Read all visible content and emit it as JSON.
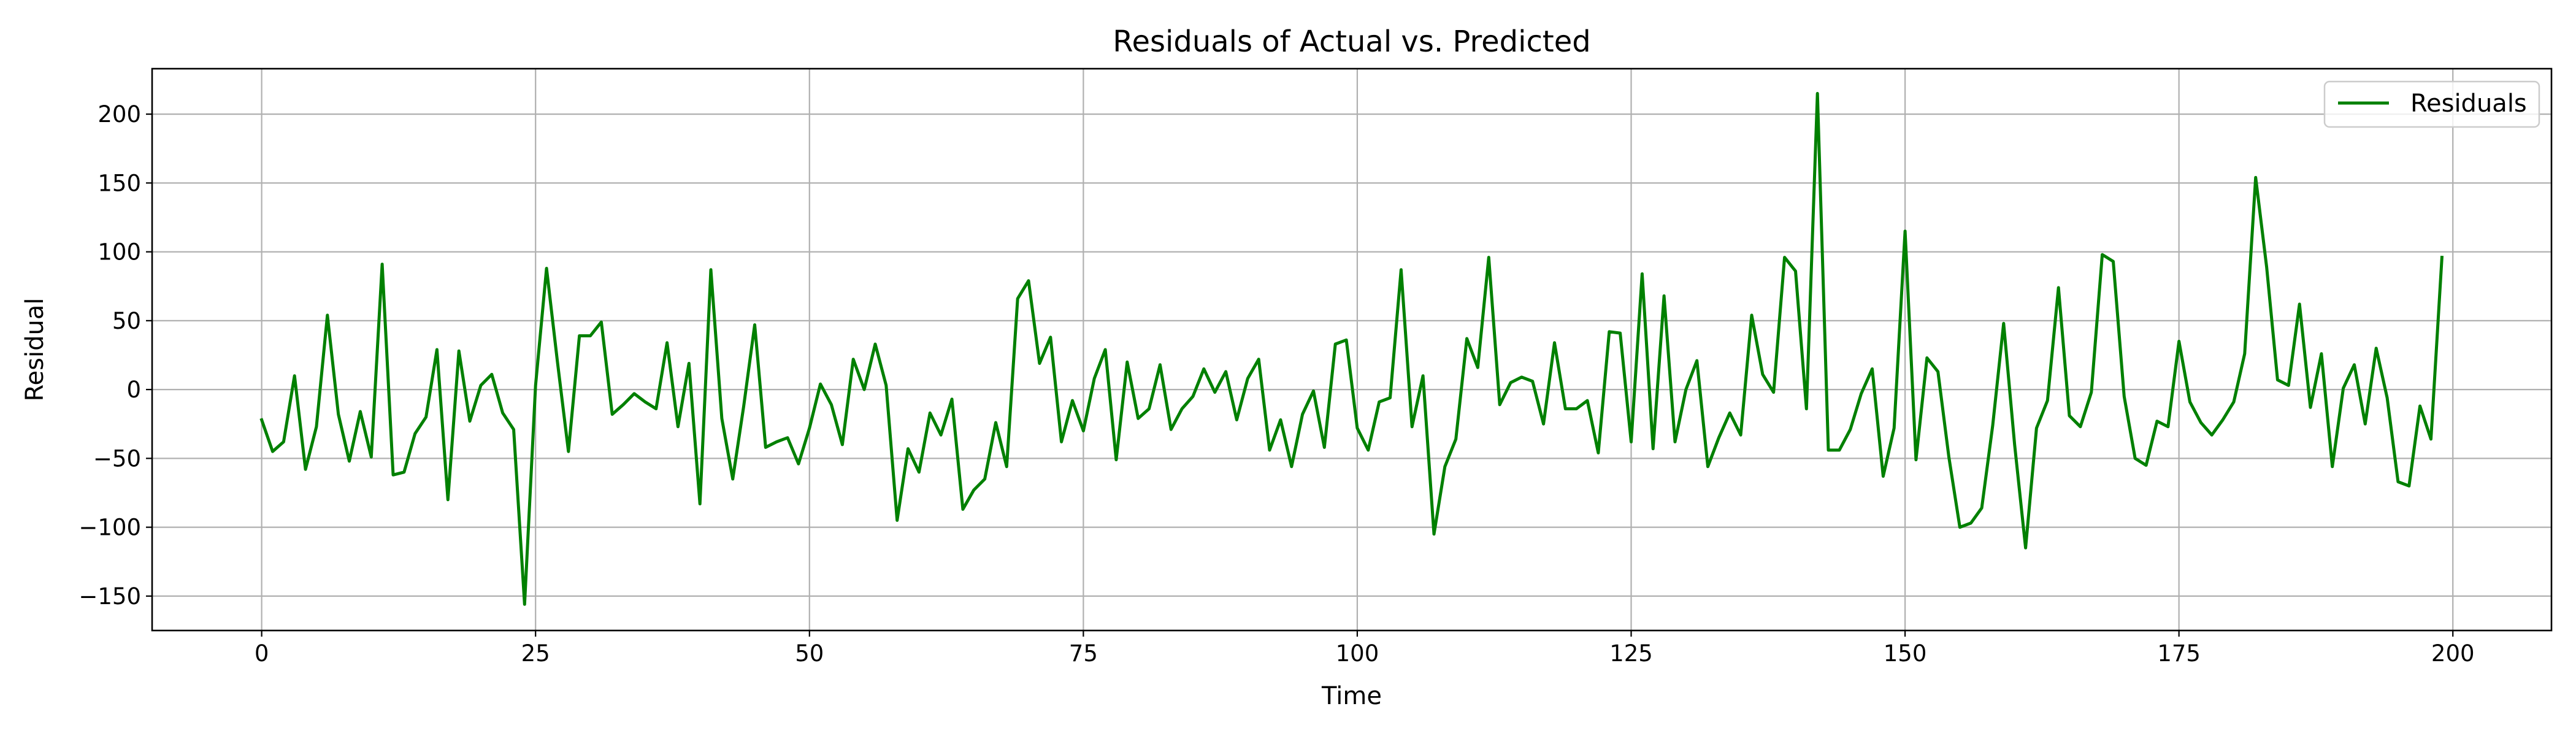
{
  "chart_data": {
    "type": "line",
    "title": "Residuals of Actual vs. Predicted",
    "xlabel": "Time",
    "ylabel": "Residual",
    "xlim": [
      -10,
      209
    ],
    "ylim": [
      -175,
      233
    ],
    "x_ticks": [
      0,
      25,
      50,
      75,
      100,
      125,
      150,
      175,
      200
    ],
    "x_tick_labels": [
      "0",
      "25",
      "50",
      "75",
      "100",
      "125",
      "150",
      "175",
      "200"
    ],
    "y_ticks": [
      -150,
      -100,
      -50,
      0,
      50,
      100,
      150,
      200
    ],
    "y_tick_labels": [
      "−150",
      "−100",
      "−50",
      "0",
      "50",
      "100",
      "150",
      "200"
    ],
    "grid": true,
    "legend_position": "top-right",
    "series": [
      {
        "name": "Residuals",
        "color": "#008000",
        "x_start": 0,
        "x_step": 1,
        "values": [
          -22,
          -45,
          -38,
          10,
          -58,
          -27,
          54,
          -18,
          -52,
          -16,
          -49,
          91,
          -62,
          -60,
          -32,
          -20,
          29,
          -80,
          28,
          -23,
          3,
          11,
          -17,
          -29,
          -156,
          3,
          88,
          20,
          -45,
          39,
          39,
          49,
          -18,
          -11,
          -3,
          -9,
          -14,
          34,
          -27,
          19,
          -83,
          87,
          -21,
          -65,
          -12,
          47,
          -42,
          -38,
          -35,
          -54,
          -28,
          4,
          -11,
          -40,
          22,
          0,
          33,
          3,
          -95,
          -43,
          -60,
          -17,
          -33,
          -7,
          -87,
          -73,
          -65,
          -24,
          -56,
          66,
          79,
          19,
          38,
          -38,
          -8,
          -30,
          8,
          29,
          -51,
          20,
          -21,
          -14,
          18,
          -29,
          -14,
          -5,
          15,
          -2,
          13,
          -22,
          8,
          22,
          -44,
          -22,
          -56,
          -18,
          -1,
          -42,
          33,
          36,
          -28,
          -44,
          -9,
          -6,
          87,
          -27,
          10,
          -105,
          -56,
          -36,
          37,
          16,
          96,
          -11,
          5,
          9,
          6,
          -25,
          34,
          -14,
          -14,
          -8,
          -46,
          42,
          41,
          -38,
          84,
          -43,
          68,
          -38,
          0,
          21,
          -56,
          -35,
          -17,
          -33,
          54,
          11,
          -2,
          96,
          86,
          -14,
          215,
          -44,
          -44,
          -29,
          -3,
          15,
          -63,
          -28,
          115,
          -51,
          23,
          13,
          -49,
          -100,
          -97,
          -86,
          -26,
          48,
          -40,
          -115,
          -28,
          -8,
          74,
          -19,
          -27,
          -2,
          98,
          93,
          -5,
          -50,
          -55,
          -23,
          -27,
          35,
          -9,
          -24,
          -33,
          -22,
          -9,
          26,
          154,
          89,
          7,
          3,
          62,
          -13,
          26,
          -56,
          1,
          18,
          -25,
          30,
          -6,
          -67,
          -70,
          -12,
          -36,
          96
        ]
      }
    ]
  }
}
